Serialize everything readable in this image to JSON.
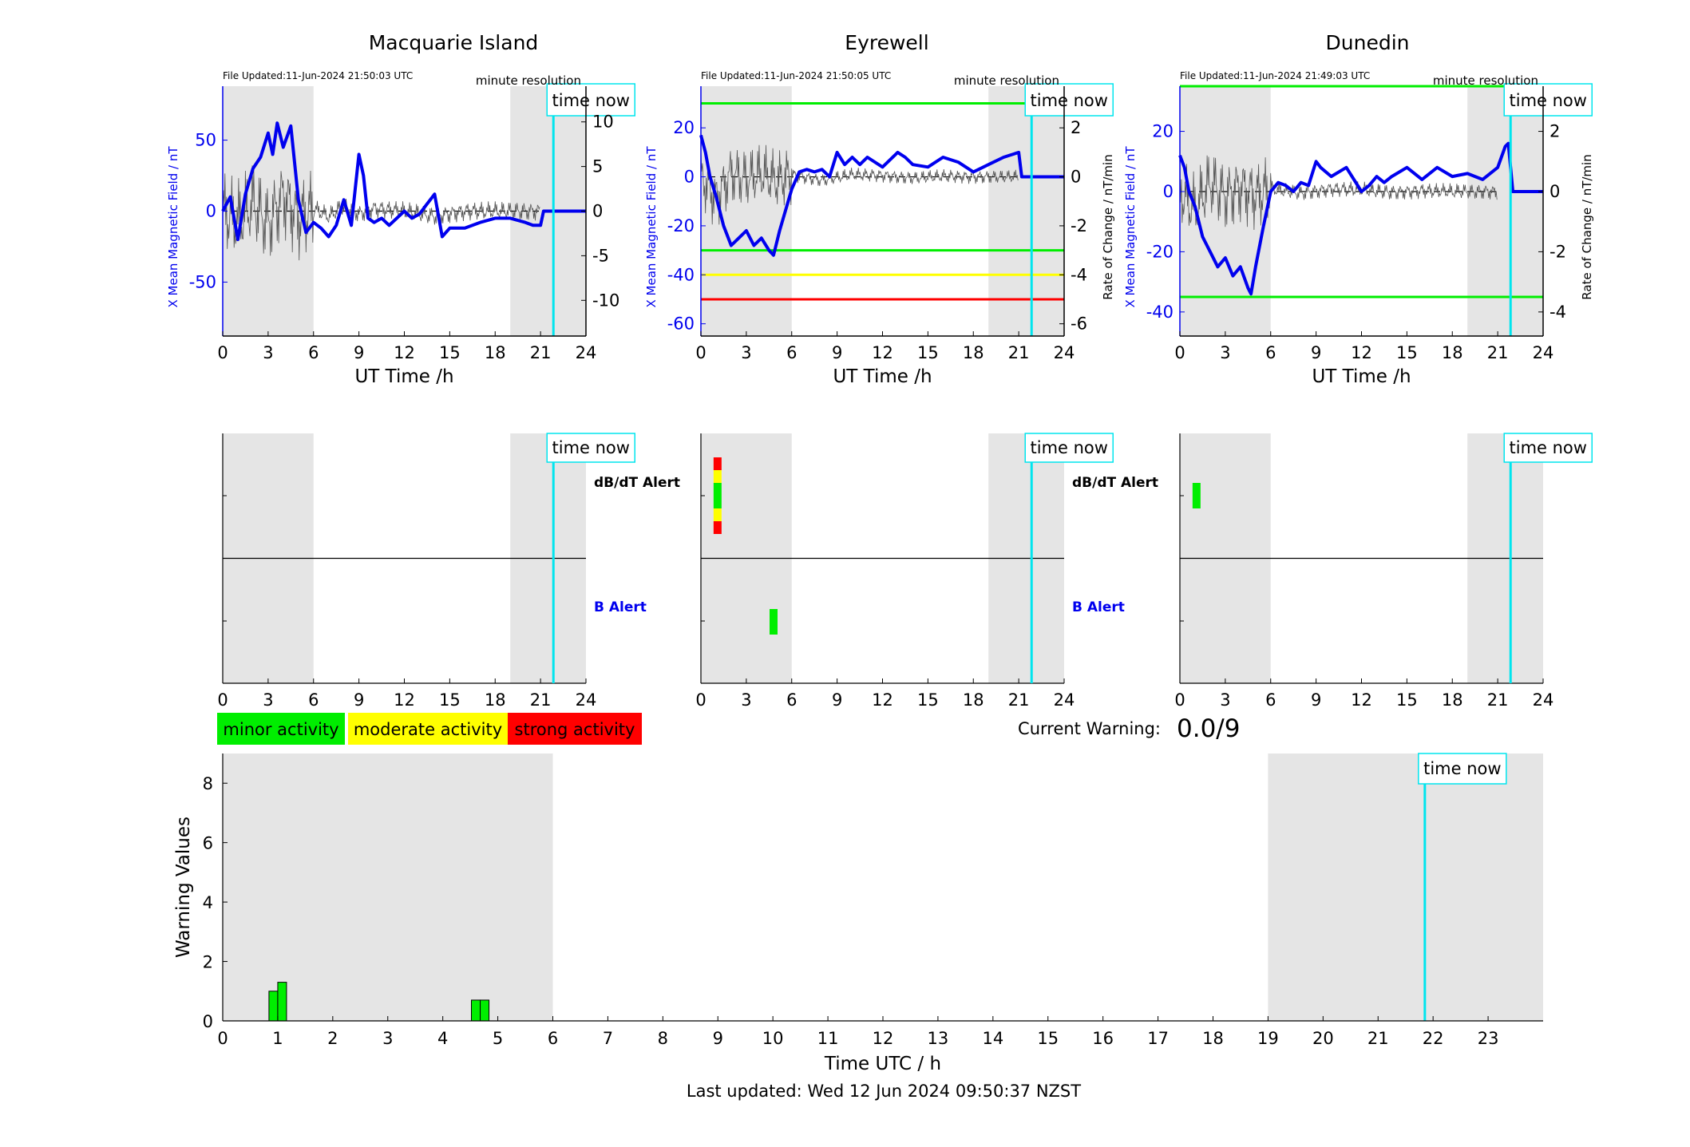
{
  "colors": {
    "field": "#0000ee",
    "rate": "#555555",
    "shade": "#e5e5e5",
    "now": "#00e5ee",
    "minor": "#00ee00",
    "moderate": "#ffff00",
    "strong": "#ff0000"
  },
  "common": {
    "x_label": "UT Time /h",
    "resolution": "minute resolution",
    "time_now": "time now",
    "db_alert": "dB/dT Alert",
    "b_alert": "B Alert",
    "left_ylabel": "X Mean Magnetic Field / nT",
    "right_ylabel": "Rate of Change / nT/min",
    "x_ticks": [
      "0",
      "3",
      "6",
      "9",
      "12",
      "15",
      "18",
      "21",
      "24"
    ]
  },
  "stations": [
    {
      "name": "Macquarie Island",
      "updated": "File Updated:11-Jun-2024 21:50:03 UTC",
      "left_ticks": [
        "50",
        "0",
        "-50"
      ],
      "right_ticks": [
        "10",
        "5",
        "0",
        "-5",
        "-10"
      ],
      "show_right_label": false
    },
    {
      "name": "Eyrewell",
      "updated": "File Updated:11-Jun-2024 21:50:05 UTC",
      "left_ticks": [
        "20",
        "0",
        "-20",
        "-40",
        "-60"
      ],
      "right_ticks": [
        "2",
        "0",
        "-2",
        "-4",
        "-6"
      ],
      "show_right_label": true
    },
    {
      "name": "Dunedin",
      "updated": "File Updated:11-Jun-2024 21:49:03 UTC",
      "left_ticks": [
        "20",
        "0",
        "-20",
        "-40"
      ],
      "right_ticks": [
        "2",
        "0",
        "-2",
        "-4"
      ],
      "show_right_label": true
    }
  ],
  "legend": {
    "minor": "minor activity",
    "moderate": "moderate activity",
    "strong": "strong activity"
  },
  "warning": {
    "label": "Current Warning:",
    "value": "0.0/9"
  },
  "bottom": {
    "ylabel": "Warning Values",
    "xlabel": "Time UTC / h",
    "y_ticks": [
      "0",
      "2",
      "4",
      "6",
      "8"
    ],
    "x_ticks": [
      "0",
      "1",
      "2",
      "3",
      "4",
      "5",
      "6",
      "7",
      "8",
      "9",
      "10",
      "11",
      "12",
      "13",
      "14",
      "15",
      "16",
      "17",
      "18",
      "19",
      "20",
      "21",
      "22",
      "23"
    ]
  },
  "footer": "Last updated: Wed 12 Jun 2024 09:50:37 NZST",
  "chart_data": [
    {
      "type": "line",
      "station": "Macquarie Island",
      "xlim": [
        0,
        24
      ],
      "ylim_left": [
        -88,
        88
      ],
      "ylim_right": [
        -14,
        14
      ],
      "shaded_hours": [
        [
          0,
          6
        ],
        [
          19,
          24
        ]
      ],
      "time_now": 21.85,
      "series": [
        {
          "name": "X Mean Magnetic Field / nT",
          "x": [
            0,
            0.5,
            1,
            1.5,
            2,
            2.5,
            3,
            3.3,
            3.6,
            4,
            4.5,
            5,
            5.5,
            6,
            6.5,
            7,
            7.5,
            8,
            8.5,
            9,
            9.3,
            9.6,
            10,
            10.5,
            11,
            12,
            12.5,
            13,
            13.5,
            14,
            14.5,
            15,
            16,
            17,
            18,
            19,
            20,
            20.5,
            21,
            21.2,
            22,
            24
          ],
          "y": [
            0,
            10,
            -20,
            12,
            30,
            38,
            55,
            40,
            62,
            45,
            60,
            8,
            -15,
            -8,
            -12,
            -18,
            -10,
            8,
            -10,
            40,
            25,
            -5,
            -8,
            -5,
            -10,
            0,
            -5,
            -2,
            5,
            12,
            -18,
            -12,
            -12,
            -8,
            -5,
            -5,
            -8,
            -10,
            -10,
            0,
            0,
            0
          ]
        },
        {
          "name": "Rate of Change / nT/min",
          "x": [
            0,
            1,
            2,
            3,
            4,
            5,
            6,
            7,
            8,
            9,
            10,
            12,
            14,
            16,
            18,
            20,
            21
          ],
          "y": [
            0,
            -4,
            3,
            -5,
            6,
            -3,
            1,
            -2,
            2,
            -1,
            1,
            0,
            -2,
            0,
            0,
            0,
            0
          ]
        }
      ]
    },
    {
      "type": "line",
      "station": "Eyrewell",
      "xlim": [
        0,
        24
      ],
      "ylim_left": [
        -65,
        37
      ],
      "ylim_right": [
        -6.5,
        3.7
      ],
      "shaded_hours": [
        [
          0,
          6
        ],
        [
          19,
          24
        ]
      ],
      "time_now": 21.85,
      "thresholds": [
        {
          "value": 30,
          "color": "green"
        },
        {
          "value": -30,
          "color": "green"
        },
        {
          "value": -40,
          "color": "yellow"
        },
        {
          "value": -50,
          "color": "red"
        }
      ],
      "series": [
        {
          "name": "X Mean Magnetic Field / nT",
          "x": [
            0,
            0.3,
            0.6,
            1,
            1.5,
            2,
            2.5,
            3,
            3.5,
            4,
            4.5,
            4.8,
            5.2,
            6,
            6.5,
            7,
            7.5,
            8,
            8.5,
            9,
            9.5,
            10,
            10.5,
            11,
            12,
            13,
            13.5,
            14,
            15,
            16,
            17,
            18,
            19,
            20,
            21,
            21.2,
            21.4,
            24
          ],
          "y": [
            17,
            10,
            0,
            -8,
            -20,
            -28,
            -25,
            -22,
            -28,
            -25,
            -30,
            -32,
            -22,
            -5,
            2,
            3,
            2,
            3,
            0,
            10,
            5,
            8,
            5,
            8,
            4,
            10,
            8,
            5,
            4,
            8,
            6,
            2,
            5,
            8,
            10,
            0,
            0,
            0
          ]
        },
        {
          "name": "Rate of Change / nT/min",
          "x": [
            0,
            1,
            2,
            3,
            4,
            5,
            6,
            8,
            10,
            12,
            14,
            16,
            18,
            20,
            21
          ],
          "y": [
            0,
            -3,
            0.5,
            -0.3,
            0.4,
            -0.5,
            0.3,
            -0.5,
            0.3,
            0.2,
            -0.2,
            0.1,
            0,
            0,
            0
          ]
        }
      ],
      "alerts_dbdt": [
        {
          "hour": 1.1,
          "levels": [
            "strong",
            "moderate",
            "minor",
            "minor",
            "moderate",
            "strong"
          ]
        }
      ],
      "alerts_b": [
        {
          "hour": 4.8,
          "level": "minor"
        }
      ]
    },
    {
      "type": "line",
      "station": "Dunedin",
      "xlim": [
        0,
        24
      ],
      "ylim_left": [
        -48,
        35
      ],
      "ylim_right": [
        -4.8,
        3.5
      ],
      "shaded_hours": [
        [
          0,
          6
        ],
        [
          19,
          24
        ]
      ],
      "time_now": 21.85,
      "thresholds": [
        {
          "value": 35,
          "color": "green"
        },
        {
          "value": -35,
          "color": "green"
        }
      ],
      "series": [
        {
          "name": "X Mean Magnetic Field / nT",
          "x": [
            0,
            0.3,
            0.6,
            1,
            1.5,
            2,
            2.5,
            3,
            3.5,
            4,
            4.5,
            4.7,
            5,
            5.5,
            6,
            6.5,
            7,
            7.5,
            8,
            8.5,
            9,
            9.3,
            10,
            11,
            12,
            12.5,
            13,
            13.5,
            14,
            15,
            16,
            17,
            18,
            19,
            20,
            21,
            21.5,
            21.7,
            22,
            24
          ],
          "y": [
            12,
            8,
            0,
            -5,
            -15,
            -20,
            -25,
            -22,
            -28,
            -25,
            -32,
            -34,
            -25,
            -12,
            0,
            3,
            2,
            0,
            3,
            2,
            10,
            8,
            5,
            8,
            0,
            2,
            5,
            3,
            5,
            8,
            4,
            8,
            5,
            6,
            4,
            8,
            15,
            16,
            0,
            0
          ]
        },
        {
          "name": "Rate of Change / nT/min",
          "x": [
            0,
            1,
            2,
            3,
            4,
            5,
            6,
            8,
            10,
            12,
            14,
            16,
            18,
            20,
            21
          ],
          "y": [
            0,
            -2,
            1,
            -0.5,
            0.5,
            -0.5,
            0.3,
            -0.2,
            0.3,
            0.2,
            -0.1,
            0.1,
            0,
            0,
            0
          ]
        }
      ],
      "alerts_dbdt": [
        {
          "hour": 1.1,
          "levels": [
            "minor",
            "minor"
          ]
        }
      ],
      "alerts_b": []
    },
    {
      "type": "bar",
      "title": "Warning Values",
      "xlabel": "Time UTC / h",
      "ylabel": "Warning Values",
      "xlim": [
        0,
        24
      ],
      "ylim": [
        0,
        9
      ],
      "shaded_hours": [
        [
          0,
          6
        ],
        [
          19,
          24
        ]
      ],
      "time_now": 21.85,
      "bars": [
        {
          "x": 0.92,
          "value": 1.0
        },
        {
          "x": 1.08,
          "value": 1.3
        },
        {
          "x": 4.6,
          "value": 0.7
        },
        {
          "x": 4.76,
          "value": 0.7
        }
      ]
    }
  ]
}
